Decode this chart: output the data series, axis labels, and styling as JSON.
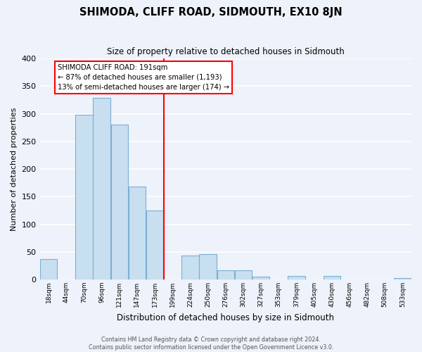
{
  "title": "SHIMODA, CLIFF ROAD, SIDMOUTH, EX10 8JN",
  "subtitle": "Size of property relative to detached houses in Sidmouth",
  "xlabel": "Distribution of detached houses by size in Sidmouth",
  "ylabel": "Number of detached properties",
  "bar_color": "#c8dff0",
  "bar_edge_color": "#7bafd4",
  "background_color": "#eef2fa",
  "grid_color": "white",
  "bin_labels": [
    "18sqm",
    "44sqm",
    "70sqm",
    "96sqm",
    "121sqm",
    "147sqm",
    "173sqm",
    "199sqm",
    "224sqm",
    "250sqm",
    "276sqm",
    "302sqm",
    "327sqm",
    "353sqm",
    "379sqm",
    "405sqm",
    "430sqm",
    "456sqm",
    "482sqm",
    "508sqm",
    "533sqm"
  ],
  "bar_heights": [
    37,
    0,
    298,
    329,
    280,
    168,
    125,
    0,
    43,
    46,
    16,
    17,
    5,
    0,
    6,
    0,
    6,
    0,
    0,
    0,
    2
  ],
  "property_line_bin": 7,
  "property_line_color": "red",
  "annotation_text": "SHIMODA CLIFF ROAD: 191sqm\n← 87% of detached houses are smaller (1,193)\n13% of semi-detached houses are larger (174) →",
  "annotation_box_color": "white",
  "annotation_box_edge_color": "red",
  "ylim": [
    0,
    400
  ],
  "yticks": [
    0,
    50,
    100,
    150,
    200,
    250,
    300,
    350,
    400
  ],
  "footer_line1": "Contains HM Land Registry data © Crown copyright and database right 2024.",
  "footer_line2": "Contains public sector information licensed under the Open Government Licence v3.0."
}
